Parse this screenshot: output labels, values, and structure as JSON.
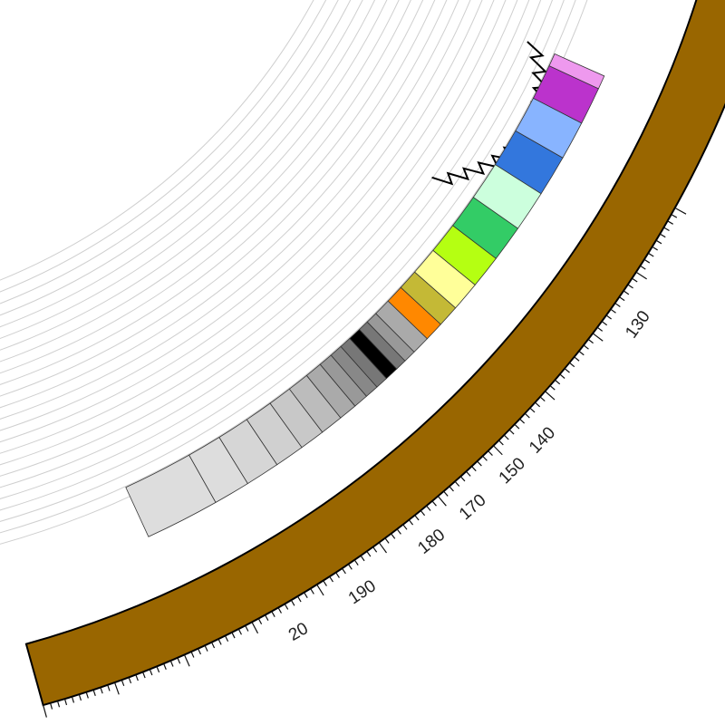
{
  "chart_data": {
    "type": "circular-genome-plot",
    "title": "",
    "scale": {
      "tick_labels": [
        "130",
        "140",
        "150",
        "170",
        "180",
        "190",
        "20"
      ]
    },
    "outer_band": {
      "color": "#996600"
    },
    "segment_colors": [
      "#dddddd",
      "#dddddd",
      "#d6d6d6",
      "#d0d0d0",
      "#c8c8c8",
      "#bcbcbc",
      "#aaaaaa",
      "#999999",
      "#888888",
      "#777777",
      "#000000",
      "#777777",
      "#999999",
      "#aaaaaa",
      "#ff8800",
      "#c4b936",
      "#ffff99",
      "#b5ff12",
      "#33cc66",
      "#ccffdd",
      "#3377dd",
      "#88b4ff",
      "#bb33cc",
      "#ee99ee"
    ],
    "profile_line": {
      "color": "#000000",
      "description": "stepped coverage profile"
    },
    "grid": true
  }
}
